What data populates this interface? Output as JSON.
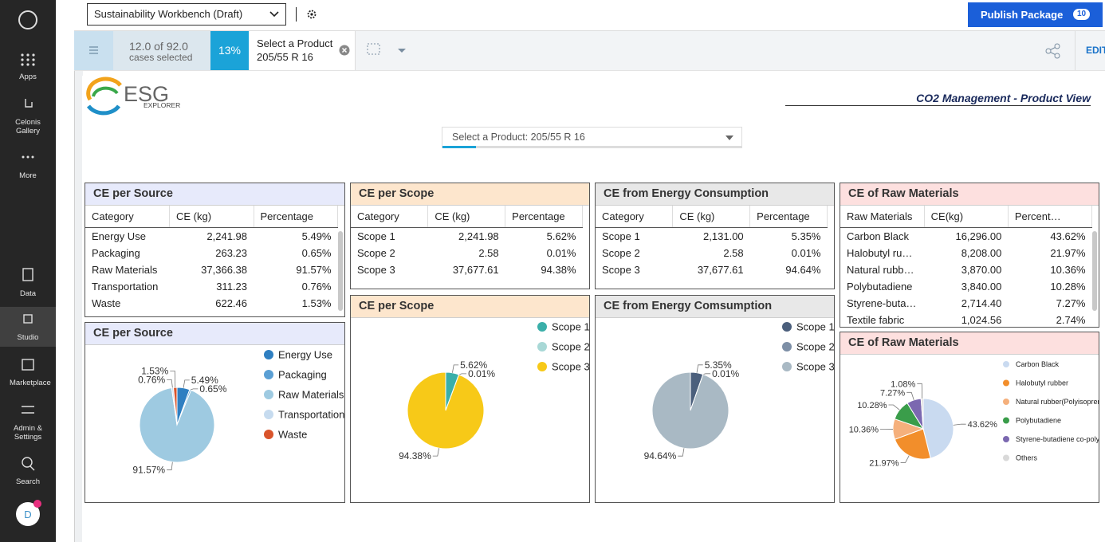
{
  "sidebar": {
    "items": [
      "Apps",
      "Celonis Gallery",
      "More",
      "Data",
      "Studio",
      "Marketplace",
      "Admin & Settings",
      "Search"
    ],
    "avatar": "D"
  },
  "topbar": {
    "workbench": "Sustainability Workbench (Draft)",
    "publish": "Publish Package",
    "badge": "10"
  },
  "filter_bar": {
    "cases": "12.0 of 92.0",
    "cases_caption": "cases selected",
    "percent": "13%",
    "filter_label": "Select a Product",
    "filter_value": "205/55 R 16",
    "edit": "EDIT"
  },
  "dashboard": {
    "logo": "ESG",
    "logo_sub": "EXPLORER",
    "title": "CO2 Management - Product View",
    "dropdown": "Select a Product: 205/55 R 16"
  },
  "tables": [
    {
      "title": "CE per Source",
      "columns": [
        "Category",
        "CE (kg)",
        "Percentage"
      ],
      "rows": [
        [
          "Energy Use",
          "2,241.98",
          "5.49%"
        ],
        [
          "Packaging",
          "263.23",
          "0.65%"
        ],
        [
          "Raw Materials",
          "37,366.38",
          "91.57%"
        ],
        [
          "Transportation",
          "311.23",
          "0.76%"
        ],
        [
          "Waste",
          "622.46",
          "1.53%"
        ]
      ]
    },
    {
      "title": "CE per Scope",
      "columns": [
        "Category",
        "CE (kg)",
        "Percentage"
      ],
      "rows": [
        [
          "Scope 1",
          "2,241.98",
          "5.62%"
        ],
        [
          "Scope 2",
          "2.58",
          "0.01%"
        ],
        [
          "Scope 3",
          "37,677.61",
          "94.38%"
        ]
      ]
    },
    {
      "title": "CE from Energy Consumption",
      "columns": [
        "Category",
        "CE (kg)",
        "Percentage"
      ],
      "rows": [
        [
          "Scope 1",
          "2,131.00",
          "5.35%"
        ],
        [
          "Scope 2",
          "2.58",
          "0.01%"
        ],
        [
          "Scope 3",
          "37,677.61",
          "94.64%"
        ]
      ]
    },
    {
      "title": "CE of Raw Materials",
      "columns": [
        "Raw Materials",
        "CE(kg)",
        "Percent…"
      ],
      "rows": [
        [
          "Carbon Black",
          "16,296.00",
          "43.62%"
        ],
        [
          "Halobutyl rub…",
          "8,208.00",
          "21.97%"
        ],
        [
          "Natural rubbe…",
          "3,870.00",
          "10.36%"
        ],
        [
          "Polybutadiene",
          "3,840.00",
          "10.28%"
        ],
        [
          "Styrene-buta…",
          "2,714.40",
          "7.27%"
        ],
        [
          "Textile fabric",
          "1,024.56",
          "2.74%"
        ]
      ]
    }
  ],
  "chart_data": [
    {
      "type": "pie",
      "title": "CE per Source",
      "categories": [
        "Energy Use",
        "Packaging",
        "Raw Materials",
        "Transportation",
        "Waste"
      ],
      "values": [
        5.49,
        0.65,
        91.57,
        0.76,
        1.53
      ],
      "value_labels": [
        "5.49%",
        "0.65%",
        "91.57%",
        "0.76%",
        "1.53%"
      ],
      "colors": [
        "#2f7fc1",
        "#5a9fd4",
        "#9ecae1",
        "#c6dbef",
        "#d9542b"
      ]
    },
    {
      "type": "pie",
      "title": "CE per Scope",
      "categories": [
        "Scope 1",
        "Scope 2",
        "Scope 3"
      ],
      "values": [
        5.62,
        0.01,
        94.38
      ],
      "value_labels": [
        "5.62%",
        "0.01%",
        "94.38%"
      ],
      "colors": [
        "#3aafa9",
        "#a8d8d6",
        "#f7c918"
      ]
    },
    {
      "type": "pie",
      "title": "CE from Energy Comsumption",
      "categories": [
        "Scope 1",
        "Scope 2",
        "Scope 3"
      ],
      "values": [
        5.35,
        0.01,
        94.64
      ],
      "value_labels": [
        "5.35%",
        "0.01%",
        "94.64%"
      ],
      "colors": [
        "#4b5f7c",
        "#7d8fa6",
        "#a9b9c4"
      ]
    },
    {
      "type": "pie",
      "title": "CE of Raw Materials",
      "categories": [
        "Carbon Black",
        "Halobutyl rubber",
        "Natural rubber(Polyisoprene)",
        "Polybutadiene",
        "Styrene-butadiene co-polymer",
        "Others"
      ],
      "values": [
        43.62,
        21.97,
        10.36,
        10.28,
        7.27,
        1.08
      ],
      "value_labels": [
        "43.62%",
        "21.97%",
        "10.36%",
        "10.28%",
        "7.27%",
        "1.08%"
      ],
      "colors": [
        "#c9daf0",
        "#f28e2b",
        "#f5b07c",
        "#3a9d4a",
        "#7b68b0",
        "#d9d9d9"
      ]
    }
  ]
}
